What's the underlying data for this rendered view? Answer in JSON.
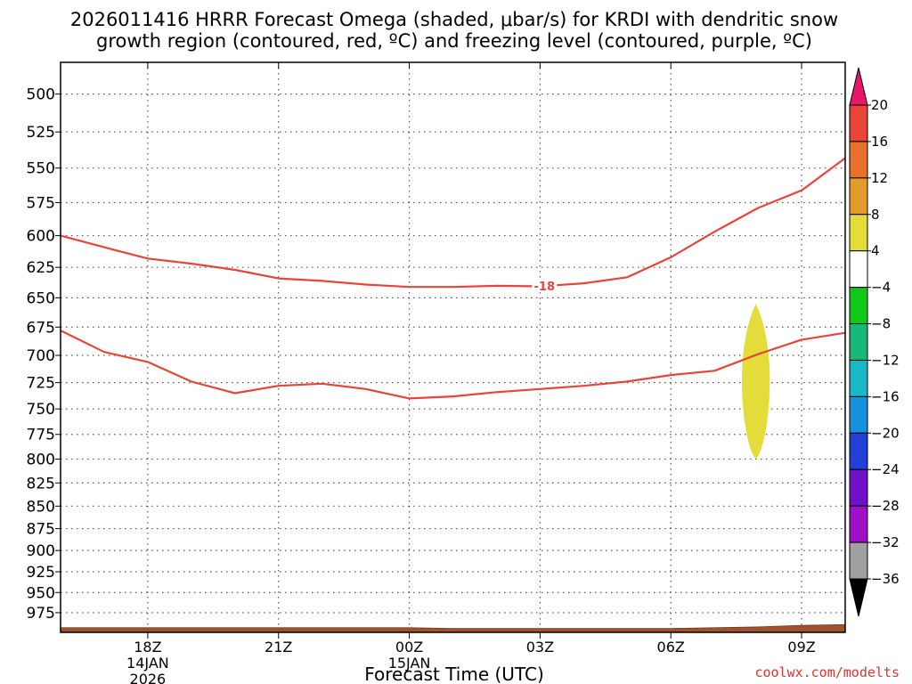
{
  "title": {
    "line1": "2026011416 HRRR Forecast Omega (shaded, μbar/s) for KRDI with dendritic snow",
    "line2": "growth region (contoured, red, ºC) and freezing level (contoured, purple, ºC)"
  },
  "credit": "coolwx.com/modelts",
  "chart_data": {
    "type": "time-height cross section",
    "xlabel": "Forecast Time (UTC)",
    "x_unit": "hours since 2026-01-14 16Z",
    "xlim": [
      0,
      18
    ],
    "y_unit": "hPa",
    "ylim": [
      1000,
      480
    ],
    "y_ticks": [
      500,
      525,
      550,
      575,
      600,
      625,
      650,
      675,
      700,
      725,
      750,
      775,
      800,
      825,
      850,
      875,
      900,
      925,
      950,
      975
    ],
    "x_ticks": [
      {
        "x": 2,
        "label": "18Z",
        "label2": "14JAN",
        "label3": "2026"
      },
      {
        "x": 5,
        "label": "21Z",
        "label2": "",
        "label3": ""
      },
      {
        "x": 8,
        "label": "00Z",
        "label2": "15JAN",
        "label3": ""
      },
      {
        "x": 11,
        "label": "03Z",
        "label2": "",
        "label3": ""
      },
      {
        "x": 14,
        "label": "06Z",
        "label2": "",
        "label3": ""
      },
      {
        "x": 17,
        "label": "09Z",
        "label2": "",
        "label3": ""
      }
    ],
    "grid": true,
    "contours": [
      {
        "name": "-18 isotherm",
        "color": "#e8443a",
        "label": "-18",
        "label_x": 11.1,
        "points": [
          [
            0,
            600
          ],
          [
            1,
            609
          ],
          [
            2,
            618
          ],
          [
            3,
            622
          ],
          [
            4,
            627
          ],
          [
            5,
            634
          ],
          [
            6,
            636
          ],
          [
            7,
            639
          ],
          [
            8,
            641
          ],
          [
            9,
            641
          ],
          [
            10,
            640
          ],
          [
            11,
            640.5
          ],
          [
            12,
            638
          ],
          [
            13,
            633
          ],
          [
            14,
            617
          ],
          [
            15,
            597
          ],
          [
            16,
            579
          ],
          [
            17,
            566
          ],
          [
            18,
            543
          ]
        ]
      },
      {
        "name": "-12 isotherm",
        "color": "#e8443a",
        "label": "",
        "label_x": null,
        "points": [
          [
            0,
            678
          ],
          [
            1,
            697
          ],
          [
            2,
            706
          ],
          [
            3,
            724
          ],
          [
            4,
            735
          ],
          [
            5,
            728
          ],
          [
            6,
            726
          ],
          [
            7,
            731
          ],
          [
            8,
            740
          ],
          [
            9,
            738
          ],
          [
            10,
            734
          ],
          [
            11,
            731
          ],
          [
            12,
            728
          ],
          [
            13,
            724
          ],
          [
            14,
            718
          ],
          [
            15,
            714
          ],
          [
            16,
            699
          ],
          [
            17,
            686
          ],
          [
            18,
            680
          ]
        ]
      }
    ],
    "shaded_regions": [
      {
        "name": "omega 4 to 8",
        "color": "#e4dc38",
        "x_center": 15.95,
        "half_width": 0.32,
        "top": 655,
        "bottom": 800
      }
    ],
    "terrain": {
      "color": "#a0522d",
      "points": [
        [
          0,
          994
        ],
        [
          8,
          994
        ],
        [
          9,
          995
        ],
        [
          14,
          995
        ],
        [
          15,
          994
        ],
        [
          16,
          993
        ],
        [
          17,
          991
        ],
        [
          18,
          990
        ]
      ]
    },
    "colorbar": {
      "levels": [
        20,
        16,
        12,
        8,
        4,
        -4,
        -8,
        -12,
        -16,
        -20,
        -24,
        -28,
        -32,
        -36
      ],
      "tick_labels": [
        "20",
        "16",
        "12",
        "8",
        "4",
        "−4",
        "−8",
        "−12",
        "−16",
        "−20",
        "−24",
        "−28",
        "−32",
        "−36"
      ],
      "colors": [
        "#e8176b",
        "#e94639",
        "#e8702a",
        "#e29c2a",
        "#e4dc38",
        "#ffffff",
        "#10c818",
        "#18b878",
        "#18b8c8",
        "#1890e0",
        "#2040d8",
        "#7010c8",
        "#a010c8",
        "#a0a0a0",
        "#000000"
      ]
    }
  }
}
